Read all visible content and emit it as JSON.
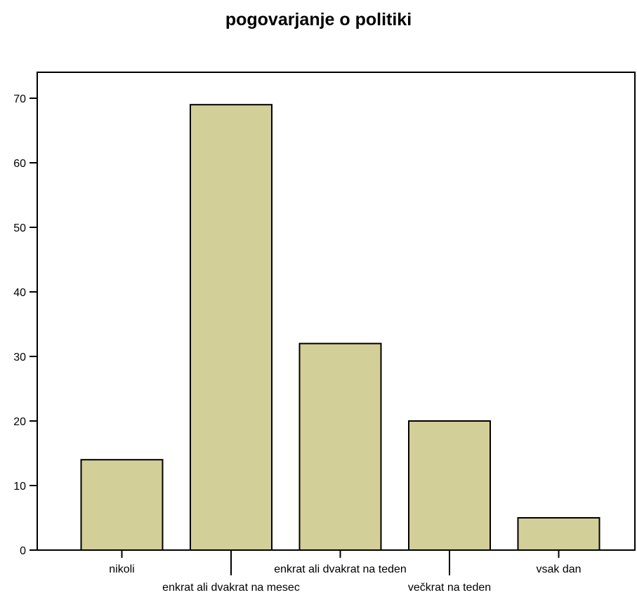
{
  "chart_data": {
    "type": "bar",
    "title": "pogovarjanje o politiki",
    "xlabel": "",
    "ylabel": "",
    "categories": [
      "nikoli",
      "enkrat ali dvakrat na mesec",
      "enkrat ali dvakrat na teden",
      "večkrat na teden",
      "vsak dan"
    ],
    "values": [
      14,
      69,
      32,
      20,
      5
    ],
    "ylim": [
      0,
      70
    ],
    "yticks": [
      0,
      10,
      20,
      30,
      40,
      50,
      60,
      70
    ],
    "grid": false,
    "legend": "none",
    "colors": {
      "bar_fill": "#d3cf98",
      "bar_stroke": "#000000",
      "axis": "#000000"
    }
  }
}
